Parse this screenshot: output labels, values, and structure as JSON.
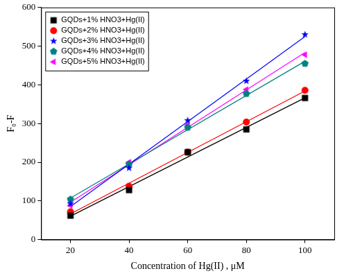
{
  "chart_data": {
    "type": "scatter",
    "x_label": "Concentration of Hg(II) , μM",
    "y_label": "F₀-F",
    "xlim": [
      10,
      110
    ],
    "xticks": [
      20,
      40,
      60,
      80,
      100
    ],
    "ylim": [
      0,
      600
    ],
    "yticks": [
      0,
      100,
      200,
      300,
      400,
      500,
      600
    ],
    "grid": false,
    "legend": "upper left",
    "x": [
      20,
      40,
      60,
      80,
      100
    ],
    "series": [
      {
        "name": "GQDs+1% HNO3+Hg(II)",
        "color": "#000000",
        "marker": "square",
        "line_style": "solid",
        "values": [
          62,
          128,
          226,
          285,
          366
        ]
      },
      {
        "name": "GQDs+2% HNO3+Hg(II)",
        "color": "#ff0000",
        "marker": "circle",
        "line_style": "solid",
        "values": [
          72,
          138,
          226,
          304,
          386
        ]
      },
      {
        "name": "GQDs+3% HNO3+Hg(II)",
        "color": "#0000ff",
        "marker": "star",
        "line_style": "solid",
        "values": [
          93,
          185,
          308,
          410,
          530
        ]
      },
      {
        "name": "GQDs+4% HNO3+Hg(II)",
        "color": "#008080",
        "marker": "pentagon",
        "line_style": "solid",
        "values": [
          104,
          195,
          290,
          377,
          455
        ]
      },
      {
        "name": "GQDs+5% HNO3+Hg(II)",
        "color": "#ff00ff",
        "marker": "triangle-left",
        "line_style": "solid",
        "values": [
          88,
          200,
          297,
          388,
          478
        ]
      }
    ]
  }
}
